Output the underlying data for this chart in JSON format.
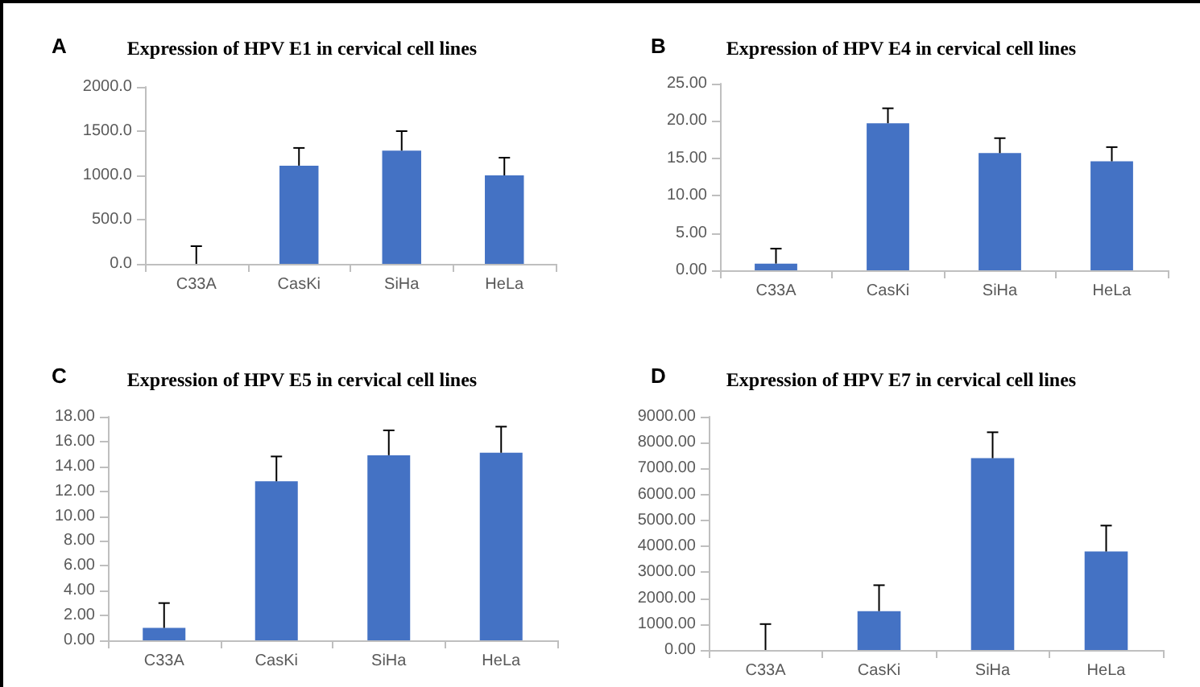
{
  "chart_data": [
    {
      "type": "bar",
      "title": "Expression of HPV E1 in cervical cell lines",
      "annotations": [
        "A"
      ],
      "categories": [
        "C33A",
        "CasKi",
        "SiHa",
        "HeLa"
      ],
      "values": [
        0,
        1110,
        1280,
        1000
      ],
      "color": "#4472c4",
      "errors": [
        200,
        [
          1110,
          1310
        ],
        [
          1280,
          1500
        ],
        [
          1000,
          1200
        ]
      ],
      "ylim": [
        0,
        2000
      ],
      "yticks": [
        {
          "value": 0,
          "label": "0.0"
        },
        {
          "value": 500,
          "label": "500.0"
        },
        {
          "value": 1000,
          "label": "1000.0"
        },
        {
          "value": 1500,
          "label": "1500.0"
        },
        {
          "value": 2000,
          "label": "2000.0"
        }
      ],
      "grid": false
    },
    {
      "type": "bar",
      "title": "Expression of HPV E4 in cervical cell lines",
      "annotations": [
        "B"
      ],
      "categories": [
        "C33A",
        "CasKi",
        "SiHa",
        "HeLa"
      ],
      "values": [
        0.9,
        19.7,
        15.7,
        14.6
      ],
      "color": "#4472c4",
      "errors": [
        [
          0.9,
          2.9
        ],
        [
          19.7,
          21.7
        ],
        [
          15.7,
          17.7
        ],
        [
          14.6,
          16.5
        ]
      ],
      "ylim": [
        0,
        25
      ],
      "yticks": [
        {
          "value": 0,
          "label": "0.00"
        },
        {
          "value": 5,
          "label": "5.00"
        },
        {
          "value": 10,
          "label": "10.00"
        },
        {
          "value": 15,
          "label": "15.00"
        },
        {
          "value": 20,
          "label": "20.00"
        },
        {
          "value": 25,
          "label": "25.00"
        }
      ],
      "grid": false
    },
    {
      "type": "bar",
      "title": "Expression of HPV E5 in cervical cell lines",
      "annotations": [
        "C"
      ],
      "categories": [
        "C33A",
        "CasKi",
        "SiHa",
        "HeLa"
      ],
      "values": [
        1.0,
        12.8,
        14.9,
        15.1
      ],
      "color": "#4472c4",
      "errors": [
        [
          1.0,
          3.0
        ],
        [
          12.8,
          14.8
        ],
        [
          14.9,
          16.9
        ],
        [
          15.1,
          17.2
        ]
      ],
      "ylim": [
        0,
        18
      ],
      "yticks": [
        {
          "value": 0,
          "label": "0.00"
        },
        {
          "value": 2,
          "label": "2.00"
        },
        {
          "value": 4,
          "label": "4.00"
        },
        {
          "value": 6,
          "label": "6.00"
        },
        {
          "value": 8,
          "label": "8.00"
        },
        {
          "value": 10,
          "label": "10.00"
        },
        {
          "value": 12,
          "label": "12.00"
        },
        {
          "value": 14,
          "label": "14.00"
        },
        {
          "value": 16,
          "label": "16.00"
        },
        {
          "value": 18,
          "label": "18.00"
        }
      ],
      "grid": false
    },
    {
      "type": "bar",
      "title": "Expression of HPV E7 in cervical cell lines",
      "annotations": [
        "D"
      ],
      "categories": [
        "C33A",
        "CasKi",
        "SiHa",
        "HeLa"
      ],
      "values": [
        0,
        1500,
        7400,
        3800
      ],
      "color": "#4472c4",
      "errors": [
        [
          0,
          1000
        ],
        [
          1500,
          2500
        ],
        [
          7400,
          8400
        ],
        [
          3800,
          4800
        ]
      ],
      "ylim": [
        0,
        9000
      ],
      "yticks": [
        {
          "value": 0,
          "label": "0.00"
        },
        {
          "value": 1000,
          "label": "1000.00"
        },
        {
          "value": 2000,
          "label": "2000.00"
        },
        {
          "value": 3000,
          "label": "3000.00"
        },
        {
          "value": 4000,
          "label": "4000.00"
        },
        {
          "value": 5000,
          "label": "5000.00"
        },
        {
          "value": 6000,
          "label": "6000.00"
        },
        {
          "value": 7000,
          "label": "7000.00"
        },
        {
          "value": 8000,
          "label": "8000.00"
        },
        {
          "value": 9000,
          "label": "9000.00"
        }
      ],
      "grid": false
    }
  ]
}
